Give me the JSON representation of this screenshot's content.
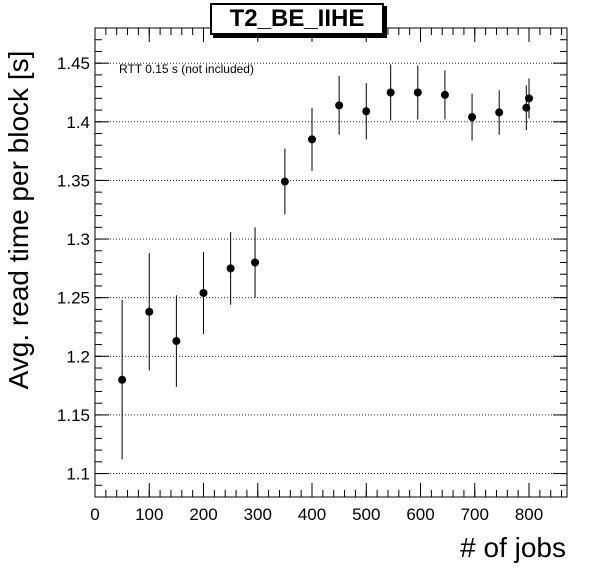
{
  "chart_data": {
    "type": "scatter",
    "title": "T2_BE_IIHE",
    "xlabel": "# of jobs",
    "ylabel": "Avg. read time per block [s]",
    "annotation": "RTT 0.15 s (not included)",
    "xlim": [
      0,
      870
    ],
    "ylim": [
      1.08,
      1.48
    ],
    "x_ticks": [
      0,
      100,
      200,
      300,
      400,
      500,
      600,
      700,
      800
    ],
    "y_ticks": [
      1.1,
      1.15,
      1.2,
      1.25,
      1.3,
      1.35,
      1.4,
      1.45
    ],
    "y_tick_labels": [
      "1.1",
      "1.15",
      "1.2",
      "1.25",
      "1.3",
      "1.35",
      "1.4",
      "1.45"
    ],
    "grid": "horizontal",
    "series": [
      {
        "x": [
          50,
          100,
          150,
          200,
          250,
          295,
          350,
          400,
          450,
          500,
          545,
          595,
          645,
          695,
          745,
          795,
          800
        ],
        "y": [
          1.18,
          1.238,
          1.213,
          1.254,
          1.275,
          1.28,
          1.349,
          1.385,
          1.414,
          1.409,
          1.425,
          1.425,
          1.423,
          1.404,
          1.408,
          1.412,
          1.42
        ],
        "err": [
          0.068,
          0.05,
          0.039,
          0.035,
          0.031,
          0.03,
          0.028,
          0.027,
          0.025,
          0.024,
          0.024,
          0.023,
          0.021,
          0.02,
          0.019,
          0.019,
          0.017
        ]
      }
    ]
  }
}
